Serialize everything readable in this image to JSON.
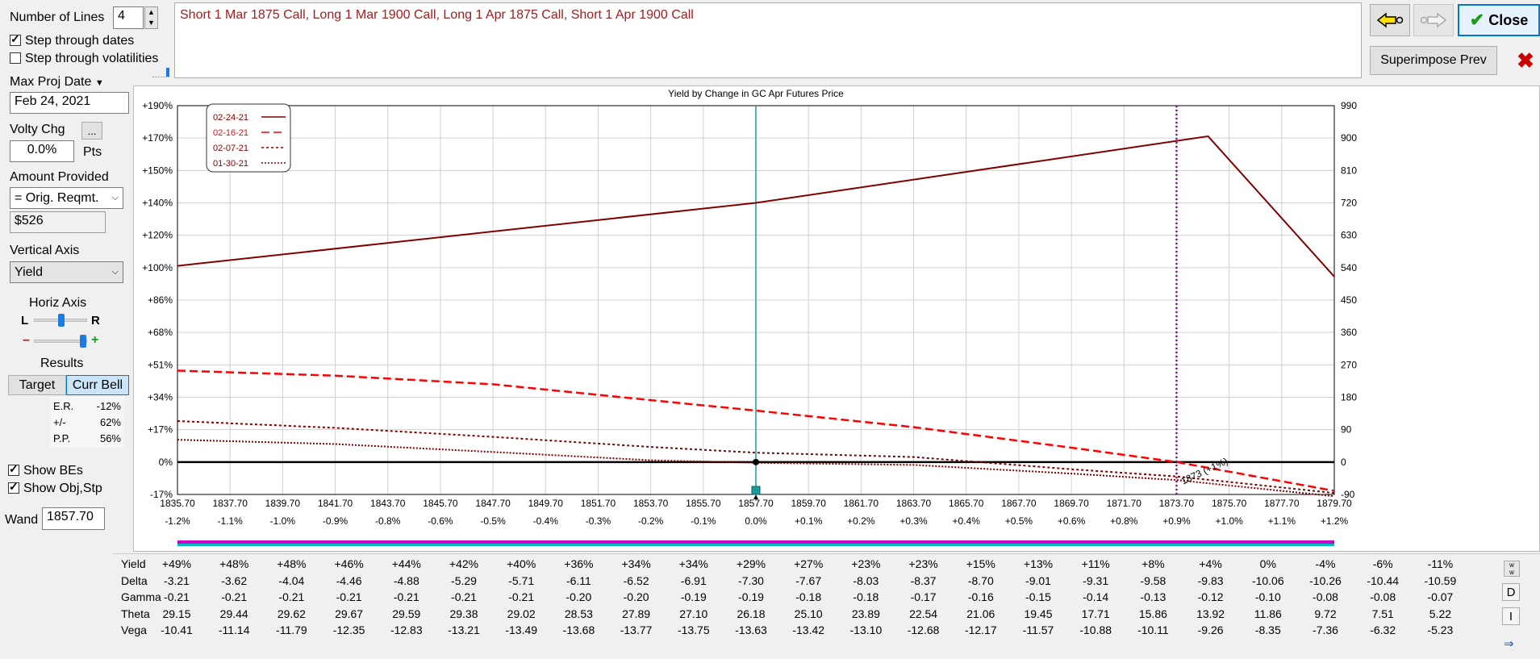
{
  "controls": {
    "number_of_lines_label": "Number of Lines",
    "number_of_lines_value": "4",
    "step_dates_label": "Step through dates",
    "step_vols_label": "Step through volatilities",
    "max_proj_label": "Max Proj Date",
    "max_proj_value": "Feb 24, 2021",
    "volty_label": "Volty Chg",
    "volty_btn": "...",
    "volty_value": "0.0%",
    "volty_units": "Pts",
    "amount_label": "Amount Provided",
    "amount_select": "= Orig. Reqmt.",
    "amount_value": "$526",
    "vaxis_label": "Vertical Axis",
    "vaxis_select": "Yield",
    "horiz_label": "Horiz Axis",
    "horiz_l": "L",
    "horiz_r": "R",
    "horiz_minus": "–",
    "horiz_plus": "+",
    "results_label": "Results",
    "target_btn": "Target",
    "currbell_btn": "Curr Bell",
    "er_label": "E.R.",
    "er_value": "-12%",
    "pm_label": "+/-",
    "pm_value": "62%",
    "pp_label": "P.P.",
    "pp_value": "56%",
    "show_bes": "Show BEs",
    "show_obj": "Show Obj,Stp",
    "wand_label": "Wand",
    "wand_value": "1857.70"
  },
  "description": "Short 1 Mar 1875 Call, Long 1 Mar 1900 Call, Long 1 Apr 1875 Call, Short 1 Apr 1900 Call",
  "buttons": {
    "close": "Close",
    "superimpose": "Superimpose Prev"
  },
  "colors": {
    "dark": "#800000",
    "red": "#ff0000",
    "teal": "#1a9c9c",
    "purple": "#9900aa",
    "accent": "#1c7be0"
  },
  "chart_data": {
    "type": "line",
    "title": "Yield by Change in GC Apr Futures Price",
    "x": [
      1835.7,
      1837.7,
      1839.7,
      1841.7,
      1843.7,
      1845.7,
      1847.7,
      1849.7,
      1851.7,
      1853.7,
      1855.7,
      1857.7,
      1859.7,
      1861.7,
      1863.7,
      1865.7,
      1867.7,
      1869.7,
      1871.7,
      1873.7,
      1875.7,
      1877.7,
      1879.7
    ],
    "x_labels": [
      "1835.70",
      "1837.70",
      "1839.70",
      "1841.70",
      "1843.70",
      "1845.70",
      "1847.70",
      "1849.70",
      "1851.70",
      "1853.70",
      "1855.70",
      "1857.70",
      "1859.70",
      "1861.70",
      "1863.70",
      "1865.70",
      "1867.70",
      "1869.70",
      "1871.70",
      "1873.70",
      "1875.70",
      "1877.70",
      "1879.70"
    ],
    "x_pct_labels": [
      "-1.2%",
      "-1.1%",
      "-1.0%",
      "-0.9%",
      "-0.8%",
      "-0.6%",
      "-0.5%",
      "-0.4%",
      "-0.3%",
      "-0.2%",
      "-0.1%",
      "0.0%",
      "+0.1%",
      "+0.2%",
      "+0.3%",
      "+0.4%",
      "+0.5%",
      "+0.6%",
      "+0.8%",
      "+0.9%",
      "+1.0%",
      "+1.1%",
      "+1.2%"
    ],
    "left_ticks": [
      "+190%",
      "+170%",
      "+150%",
      "+140%",
      "+120%",
      "+100%",
      "+86%",
      "+68%",
      "+51%",
      "+34%",
      "+17%",
      "0%",
      "-17%"
    ],
    "right_ticks": [
      "990",
      "900",
      "810",
      "720",
      "630",
      "540",
      "450",
      "360",
      "270",
      "180",
      "90",
      "0",
      "-90"
    ],
    "right_range": [
      -90,
      990
    ],
    "legend": [
      "02-24-21",
      "02-16-21",
      "02-07-21",
      "01-30-21"
    ],
    "legend_pos": "top-left",
    "series": [
      {
        "name": "02-24-21",
        "style": "solid",
        "x": [
          1835.7,
          1857.7,
          1874.9,
          1879.7
        ],
        "right_values": [
          545,
          720,
          905,
          515
        ]
      },
      {
        "name": "02-16-21",
        "style": "dashed",
        "x": [
          1835.7,
          1841.7,
          1847.7,
          1853.7,
          1857.7,
          1863.7,
          1869.7,
          1873.7,
          1879.7
        ],
        "right_values": [
          254,
          240,
          216,
          172,
          143,
          97,
          40,
          0,
          -80
        ]
      },
      {
        "name": "02-07-21",
        "style": "dotted",
        "x": [
          1835.7,
          1841.7,
          1847.7,
          1853.7,
          1857.7,
          1863.7,
          1869.7,
          1873.7,
          1879.7
        ],
        "right_values": [
          114,
          95,
          70,
          42,
          26,
          14,
          -20,
          -40,
          -86
        ]
      },
      {
        "name": "01-30-21",
        "style": "dotted",
        "x": [
          1835.7,
          1841.7,
          1847.7,
          1853.7,
          1857.7,
          1863.7,
          1869.7,
          1873.7,
          1879.7
        ],
        "right_values": [
          62,
          50,
          28,
          5,
          -2,
          -8,
          -32,
          -50,
          -95
        ]
      }
    ],
    "wand_x": 1857.7,
    "be_x": 1873.7,
    "be_label": "1873 (+1%)"
  },
  "table": {
    "rows": [
      {
        "label": "Yield",
        "values": [
          "+49%",
          "+48%",
          "+48%",
          "+46%",
          "+44%",
          "+42%",
          "+40%",
          "+36%",
          "+34%",
          "+34%",
          "+29%",
          "+27%",
          "+23%",
          "+23%",
          "+15%",
          "+13%",
          "+11%",
          "+8%",
          "+4%",
          "0%",
          "-4%",
          "-6%",
          "-11%"
        ]
      },
      {
        "label": "Delta",
        "values": [
          "-3.21",
          "-3.62",
          "-4.04",
          "-4.46",
          "-4.88",
          "-5.29",
          "-5.71",
          "-6.11",
          "-6.52",
          "-6.91",
          "-7.30",
          "-7.67",
          "-8.03",
          "-8.37",
          "-8.70",
          "-9.01",
          "-9.31",
          "-9.58",
          "-9.83",
          "-10.06",
          "-10.26",
          "-10.44",
          "-10.59"
        ]
      },
      {
        "label": "Gamma",
        "values": [
          "-0.21",
          "-0.21",
          "-0.21",
          "-0.21",
          "-0.21",
          "-0.21",
          "-0.21",
          "-0.20",
          "-0.20",
          "-0.19",
          "-0.19",
          "-0.18",
          "-0.18",
          "-0.17",
          "-0.16",
          "-0.15",
          "-0.14",
          "-0.13",
          "-0.12",
          "-0.10",
          "-0.08",
          "-0.08",
          "-0.07"
        ]
      },
      {
        "label": "Theta",
        "values": [
          "29.15",
          "29.44",
          "29.62",
          "29.67",
          "29.59",
          "29.38",
          "29.02",
          "28.53",
          "27.89",
          "27.10",
          "26.18",
          "25.10",
          "23.89",
          "22.54",
          "21.06",
          "19.45",
          "17.71",
          "15.86",
          "13.92",
          "11.86",
          "9.72",
          "7.51",
          "5.22"
        ]
      },
      {
        "label": "Vega",
        "values": [
          "-10.41",
          "-11.14",
          "-11.79",
          "-12.35",
          "-12.83",
          "-13.21",
          "-13.49",
          "-13.68",
          "-13.77",
          "-13.75",
          "-13.63",
          "-13.42",
          "-13.10",
          "-12.68",
          "-12.17",
          "-11.57",
          "-10.88",
          "-10.11",
          "-9.26",
          "-8.35",
          "-7.36",
          "-6.32",
          "-5.23"
        ]
      }
    ],
    "side_d": "D",
    "side_i": "I"
  }
}
